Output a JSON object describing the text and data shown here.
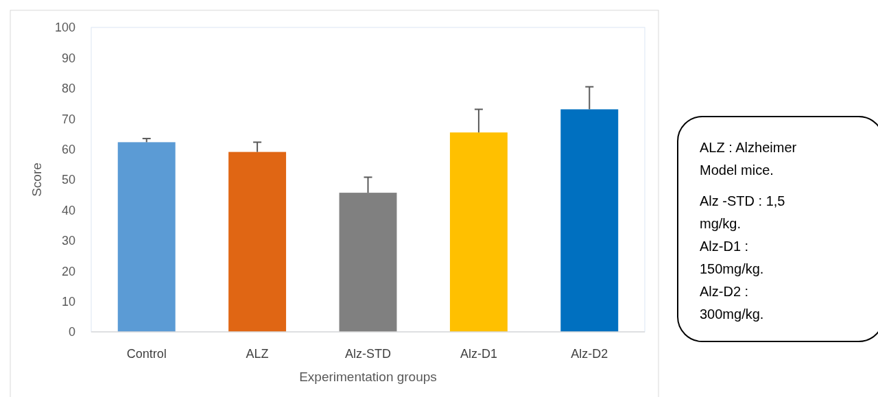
{
  "chart_data": {
    "type": "bar",
    "categories": [
      "Control",
      "ALZ",
      "Alz-STD",
      "Alz-D1",
      "Alz-D2"
    ],
    "values": [
      62.3,
      59.1,
      45.7,
      65.5,
      73.1
    ],
    "colors": [
      "#5b9bd5",
      "#e06614",
      "#808080",
      "#ffc000",
      "#0070c0"
    ],
    "errors": [
      [
        62.3,
        63.5
      ],
      [
        59.1,
        62.3
      ],
      [
        45.7,
        50.8
      ],
      [
        65.5,
        73.1
      ],
      [
        73.1,
        80.5
      ]
    ],
    "ylim": [
      0,
      100
    ],
    "yticks": [
      0,
      10,
      20,
      30,
      40,
      50,
      60,
      70,
      80,
      90,
      100
    ],
    "xlabel": "Experimentation groups",
    "ylabel": "Score",
    "grid": false,
    "annotations": [
      "ALZ : Alzheimer Model mice.",
      "Alz -STD : 1,5 mg/kg.",
      "Alz-D1 : 150mg/kg.",
      "Alz-D2 : 300mg/kg."
    ]
  }
}
